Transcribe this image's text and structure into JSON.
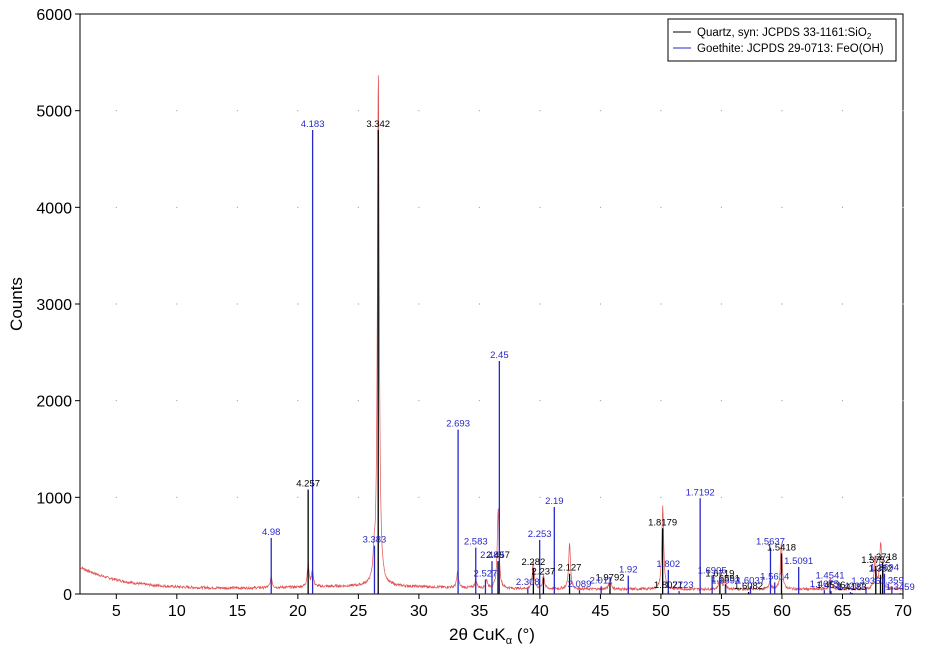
{
  "chart_data": {
    "type": "line",
    "title": "",
    "xlabel_main": "2θ CuK",
    "xlabel_sub": "α",
    "xlabel_unit": " (°)",
    "ylabel": "Counts",
    "xlim": [
      2,
      70
    ],
    "ylim": [
      0,
      6000
    ],
    "xticks": [
      5,
      10,
      15,
      20,
      25,
      30,
      35,
      40,
      45,
      50,
      55,
      60,
      65,
      70
    ],
    "yticks": [
      0,
      1000,
      2000,
      3000,
      4000,
      5000,
      6000
    ],
    "grid": "dotted",
    "legend_position": "top-right",
    "legend": [
      {
        "text_main": "Quartz, syn: JCPDS 33-1161:SiO",
        "text_sub": "2",
        "text_tail": "",
        "color": "#000000"
      },
      {
        "text_main": "Goethite: JCPDS 29-0713: FeO(OH)",
        "text_sub": "",
        "text_tail": "",
        "color": "#2828c8"
      }
    ],
    "pattern": {
      "color": "#e05050",
      "peaks": [
        [
          17.8,
          110
        ],
        [
          20.85,
          230
        ],
        [
          21.2,
          170
        ],
        [
          26.3,
          210
        ],
        [
          26.65,
          5330
        ],
        [
          33.2,
          160
        ],
        [
          34.7,
          90
        ],
        [
          35.6,
          80
        ],
        [
          36.55,
          820
        ],
        [
          39.45,
          280
        ],
        [
          40.3,
          140
        ],
        [
          42.45,
          470
        ],
        [
          45.8,
          120
        ],
        [
          50.15,
          860
        ],
        [
          54.9,
          180
        ],
        [
          55.3,
          90
        ],
        [
          59.0,
          90
        ],
        [
          59.95,
          480
        ],
        [
          64.0,
          120
        ],
        [
          67.7,
          330
        ],
        [
          68.15,
          440
        ],
        [
          68.3,
          150
        ]
      ]
    },
    "series": [
      {
        "name": "Quartz, syn: JCPDS 33-1161:SiO2",
        "color": "#000000",
        "sticks": [
          {
            "x": 20.85,
            "y": 1080,
            "label": "4.257"
          },
          {
            "x": 26.64,
            "y": 4800,
            "label": "3.342"
          },
          {
            "x": 36.54,
            "y": 340,
            "label": "2.457"
          },
          {
            "x": 39.46,
            "y": 270,
            "label": "2.282"
          },
          {
            "x": 40.29,
            "y": 170,
            "label": "2.237"
          },
          {
            "x": 42.45,
            "y": 210,
            "label": "2.127"
          },
          {
            "x": 45.79,
            "y": 110,
            "label": "1.9792"
          },
          {
            "x": 50.14,
            "y": 680,
            "label": "1.8179"
          },
          {
            "x": 50.62,
            "y": 30,
            "label": "1.8021"
          },
          {
            "x": 54.87,
            "y": 150,
            "label": "1.6719"
          },
          {
            "x": 55.33,
            "y": 100,
            "label": "1.6591"
          },
          {
            "x": 57.24,
            "y": 20,
            "label": "1.6082"
          },
          {
            "x": 59.96,
            "y": 420,
            "label": "1.5418"
          },
          {
            "x": 64.04,
            "y": 30,
            "label": "1.4536"
          },
          {
            "x": 65.79,
            "y": 10,
            "label": "1.4183"
          },
          {
            "x": 67.75,
            "y": 290,
            "label": "1.3752"
          },
          {
            "x": 68.14,
            "y": 200,
            "label": "1.382"
          },
          {
            "x": 68.32,
            "y": 320,
            "label": "1.3718"
          }
        ]
      },
      {
        "name": "Goethite: JCPDS 29-0713: FeO(OH)",
        "color": "#2828c8",
        "sticks": [
          {
            "x": 17.8,
            "y": 580,
            "label": "4.98"
          },
          {
            "x": 21.22,
            "y": 4800,
            "label": "4.183"
          },
          {
            "x": 26.33,
            "y": 500,
            "label": "3.383"
          },
          {
            "x": 33.24,
            "y": 1700,
            "label": "2.693"
          },
          {
            "x": 34.7,
            "y": 480,
            "label": "2.583"
          },
          {
            "x": 35.5,
            "y": 150,
            "label": "2.527"
          },
          {
            "x": 36.04,
            "y": 340,
            "label": "2.489"
          },
          {
            "x": 36.65,
            "y": 2410,
            "label": "2.45"
          },
          {
            "x": 39.98,
            "y": 560,
            "label": "2.253"
          },
          {
            "x": 39.0,
            "y": 60,
            "label": "2.308"
          },
          {
            "x": 41.19,
            "y": 900,
            "label": "2.19"
          },
          {
            "x": 43.27,
            "y": 40,
            "label": "2.089"
          },
          {
            "x": 45.06,
            "y": 80,
            "label": "2.011"
          },
          {
            "x": 47.3,
            "y": 190,
            "label": "1.92"
          },
          {
            "x": 50.61,
            "y": 250,
            "label": "1.802"
          },
          {
            "x": 51.5,
            "y": 30,
            "label": "1.7723"
          },
          {
            "x": 53.24,
            "y": 990,
            "label": "1.7192"
          },
          {
            "x": 54.23,
            "y": 180,
            "label": "1.6905"
          },
          {
            "x": 55.35,
            "y": 80,
            "label": "1.6593"
          },
          {
            "x": 57.4,
            "y": 80,
            "label": "1.6037"
          },
          {
            "x": 59.05,
            "y": 480,
            "label": "1.5637"
          },
          {
            "x": 59.4,
            "y": 120,
            "label": "1.5614"
          },
          {
            "x": 61.38,
            "y": 280,
            "label": "1.5091"
          },
          {
            "x": 63.97,
            "y": 130,
            "label": "1.4541"
          },
          {
            "x": 63.5,
            "y": 40,
            "label": "1.4675"
          },
          {
            "x": 65.66,
            "y": 20,
            "label": "1.4207"
          },
          {
            "x": 66.94,
            "y": 70,
            "label": "1.3936"
          },
          {
            "x": 68.47,
            "y": 210,
            "label": "1.3694"
          },
          {
            "x": 69.08,
            "y": 80,
            "label": "1.359"
          },
          {
            "x": 69.77,
            "y": 10,
            "label": "1.3459"
          }
        ]
      }
    ]
  }
}
